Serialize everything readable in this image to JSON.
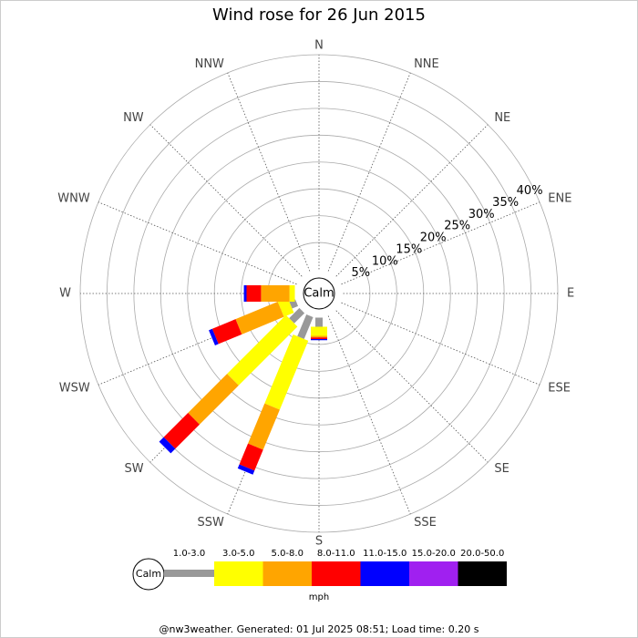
{
  "chart_data": {
    "type": "windrose",
    "title": "Wind rose for 26 Jun 2015",
    "directions": [
      "N",
      "NNE",
      "NE",
      "ENE",
      "E",
      "ESE",
      "SE",
      "SSE",
      "S",
      "SSW",
      "SW",
      "WSW",
      "W",
      "WNW",
      "NW",
      "NNW"
    ],
    "center_label": "Calm",
    "rlim": [
      0,
      40
    ],
    "rticks": [
      {
        "value": 5,
        "label": "5%"
      },
      {
        "value": 10,
        "label": "10%"
      },
      {
        "value": 15,
        "label": "15%"
      },
      {
        "value": 20,
        "label": "20%"
      },
      {
        "value": 25,
        "label": "25%"
      },
      {
        "value": 30,
        "label": "30%"
      },
      {
        "value": 35,
        "label": "35%"
      },
      {
        "value": 40,
        "label": "40%"
      }
    ],
    "series": [
      {
        "name": "1.0-3.0",
        "color": "#999999",
        "values": [
          0,
          0,
          0,
          0,
          0,
          0,
          0,
          0,
          1.7,
          4.4,
          2.7,
          1.2,
          0,
          0,
          0,
          0
        ]
      },
      {
        "name": "3.0-5.0",
        "color": "#ffff00",
        "values": [
          0,
          0,
          0,
          0,
          0,
          0,
          0,
          0,
          1.7,
          13.9,
          15.5,
          2,
          1,
          0,
          0,
          0
        ]
      },
      {
        "name": "5.0-8.0",
        "color": "#ffa500",
        "values": [
          0,
          0,
          0,
          0,
          0,
          0,
          0,
          0,
          0.3,
          8.1,
          10.3,
          8.5,
          5.3,
          0,
          0,
          0
        ]
      },
      {
        "name": "8.0-11.0",
        "color": "#ff0000",
        "values": [
          0,
          0,
          0,
          0,
          0,
          0,
          0,
          0,
          0.3,
          4.2,
          6.4,
          4.7,
          2.7,
          0,
          0,
          0
        ]
      },
      {
        "name": "11.0-15.0",
        "color": "#0000ff",
        "values": [
          0,
          0,
          0,
          0,
          0,
          0,
          0,
          0,
          0.2,
          0.8,
          1.2,
          0.7,
          0.5,
          0,
          0,
          0
        ]
      },
      {
        "name": "15.0-20.0",
        "color": "#a020f0",
        "values": [
          0,
          0,
          0,
          0,
          0,
          0,
          0,
          0,
          0,
          0,
          0,
          0,
          0,
          0,
          0,
          0
        ]
      },
      {
        "name": "20.0-50.0",
        "color": "#000000",
        "values": [
          0,
          0,
          0,
          0,
          0,
          0,
          0,
          0,
          0,
          0,
          0,
          0,
          0,
          0,
          0,
          0
        ]
      }
    ],
    "legend_title": "mph",
    "footer": "@nw3weather. Generated: 01 Jul 2025 08:51; Load time: 0.20 s"
  }
}
